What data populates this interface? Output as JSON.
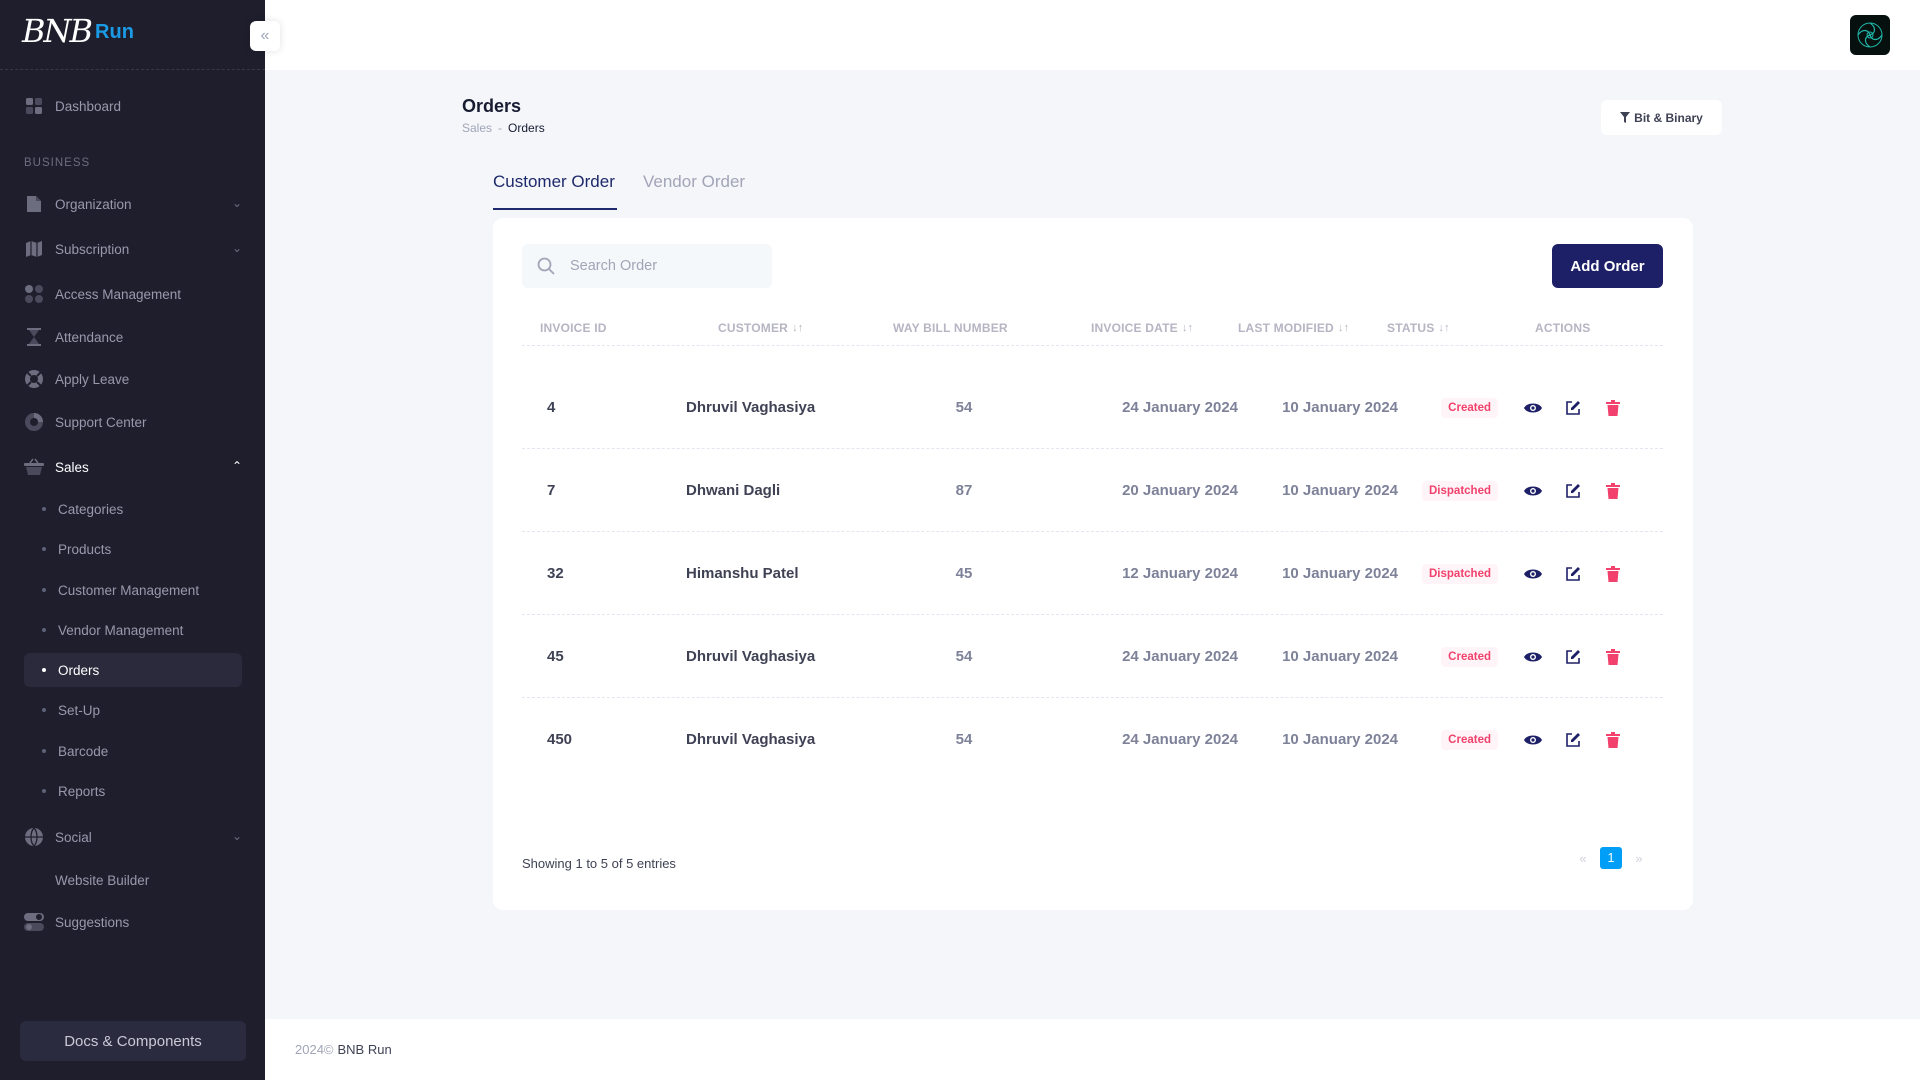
{
  "brand": {
    "logo_text": "BNB",
    "logo_accent": "Run"
  },
  "sidebar": {
    "section_label": "BUSINESS",
    "dashboard": "Dashboard",
    "items": [
      {
        "label": "Organization",
        "icon": "document-icon"
      },
      {
        "label": "Subscription",
        "icon": "map-icon"
      },
      {
        "label": "Access Management",
        "icon": "users-icon"
      },
      {
        "label": "Attendance",
        "icon": "hourglass-icon"
      },
      {
        "label": "Apply Leave",
        "icon": "lifebuoy-icon"
      },
      {
        "label": "Support Center",
        "icon": "support-icon"
      },
      {
        "label": "Sales",
        "icon": "basket-icon"
      }
    ],
    "sales_children": [
      "Categories",
      "Products",
      "Customer Management",
      "Vendor Management",
      "Orders",
      "Set-Up",
      "Barcode",
      "Reports"
    ],
    "social": "Social",
    "website_builder": "Website Builder",
    "suggestions": "Suggestions",
    "docs_button": "Docs & Components"
  },
  "page": {
    "title": "Orders",
    "breadcrumb_parent": "Sales",
    "breadcrumb_sep": "-",
    "breadcrumb_current": "Orders",
    "filter_button": "Bit & Binary"
  },
  "tabs": {
    "customer": "Customer Order",
    "vendor": "Vendor Order"
  },
  "search": {
    "placeholder": "Search Order"
  },
  "add_button": "Add Order",
  "table": {
    "headers": {
      "invoice_id": "INVOICE ID",
      "customer": "CUSTOMER",
      "way_bill": "WAY BILL NUMBER",
      "invoice_date": "INVOICE DATE",
      "last_modified": "LAST MODIFIED",
      "status": "STATUS",
      "actions": "ACTIONS"
    },
    "rows": [
      {
        "id": "4",
        "customer": "Dhruvil Vaghasiya",
        "way_bill": "54",
        "invoice_date": "24 January 2024",
        "last_modified": "10 January 2024",
        "status": "Created"
      },
      {
        "id": "7",
        "customer": "Dhwani Dagli",
        "way_bill": "87",
        "invoice_date": "20 January 2024",
        "last_modified": "10 January 2024",
        "status": "Dispatched"
      },
      {
        "id": "32",
        "customer": "Himanshu Patel",
        "way_bill": "45",
        "invoice_date": "12 January 2024",
        "last_modified": "10 January 2024",
        "status": "Dispatched"
      },
      {
        "id": "45",
        "customer": "Dhruvil Vaghasiya",
        "way_bill": "54",
        "invoice_date": "24 January 2024",
        "last_modified": "10 January 2024",
        "status": "Created"
      },
      {
        "id": "450",
        "customer": "Dhruvil Vaghasiya",
        "way_bill": "54",
        "invoice_date": "24 January 2024",
        "last_modified": "10 January 2024",
        "status": "Created"
      }
    ]
  },
  "pagination": {
    "info": "Showing 1 to 5 of 5 entries",
    "prev": "«",
    "current": "1",
    "next": "»"
  },
  "footer": {
    "year": "2024©",
    "brand": "BNB Run"
  },
  "colors": {
    "sidebar_bg": "#1e1e2d",
    "primary": "#1e2067",
    "danger": "#f1416c",
    "page_active": "#009ef7"
  }
}
